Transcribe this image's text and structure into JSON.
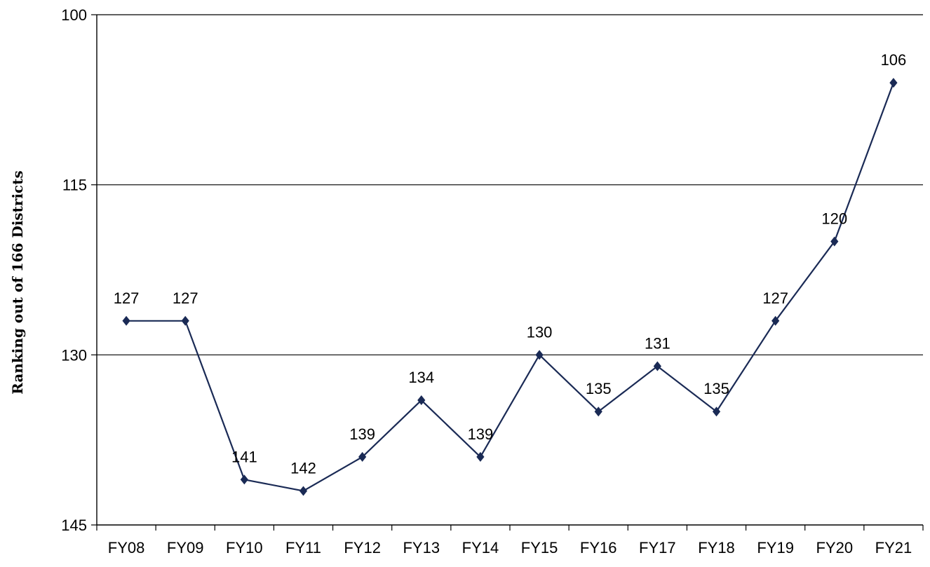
{
  "chart_data": {
    "type": "line",
    "ylabel": "Ranking out of 166 Districts",
    "xlabel": "",
    "title": "",
    "categories": [
      "FY08",
      "FY09",
      "FY10",
      "FY11",
      "FY12",
      "FY13",
      "FY14",
      "FY15",
      "FY16",
      "FY17",
      "FY18",
      "FY19",
      "FY20",
      "FY21"
    ],
    "series": [
      {
        "values": [
          127,
          127,
          141,
          142,
          139,
          134,
          139,
          130,
          135,
          131,
          135,
          127,
          120,
          106
        ]
      }
    ],
    "data_labels": [
      "127",
      "127",
      "141",
      "142",
      "139",
      "134",
      "139",
      "130",
      "135",
      "131",
      "135",
      "127",
      "120",
      "106"
    ],
    "ylim": [
      100,
      145
    ],
    "y_inverted": true,
    "y_ticks": [
      100,
      115,
      130,
      145
    ],
    "y_tick_labels": [
      "100",
      "115",
      "130",
      "145"
    ],
    "grid": true,
    "legend": "none",
    "colors": {
      "line": "#1a2a55",
      "marker": "#1a2a55",
      "grid": "#000000"
    }
  }
}
